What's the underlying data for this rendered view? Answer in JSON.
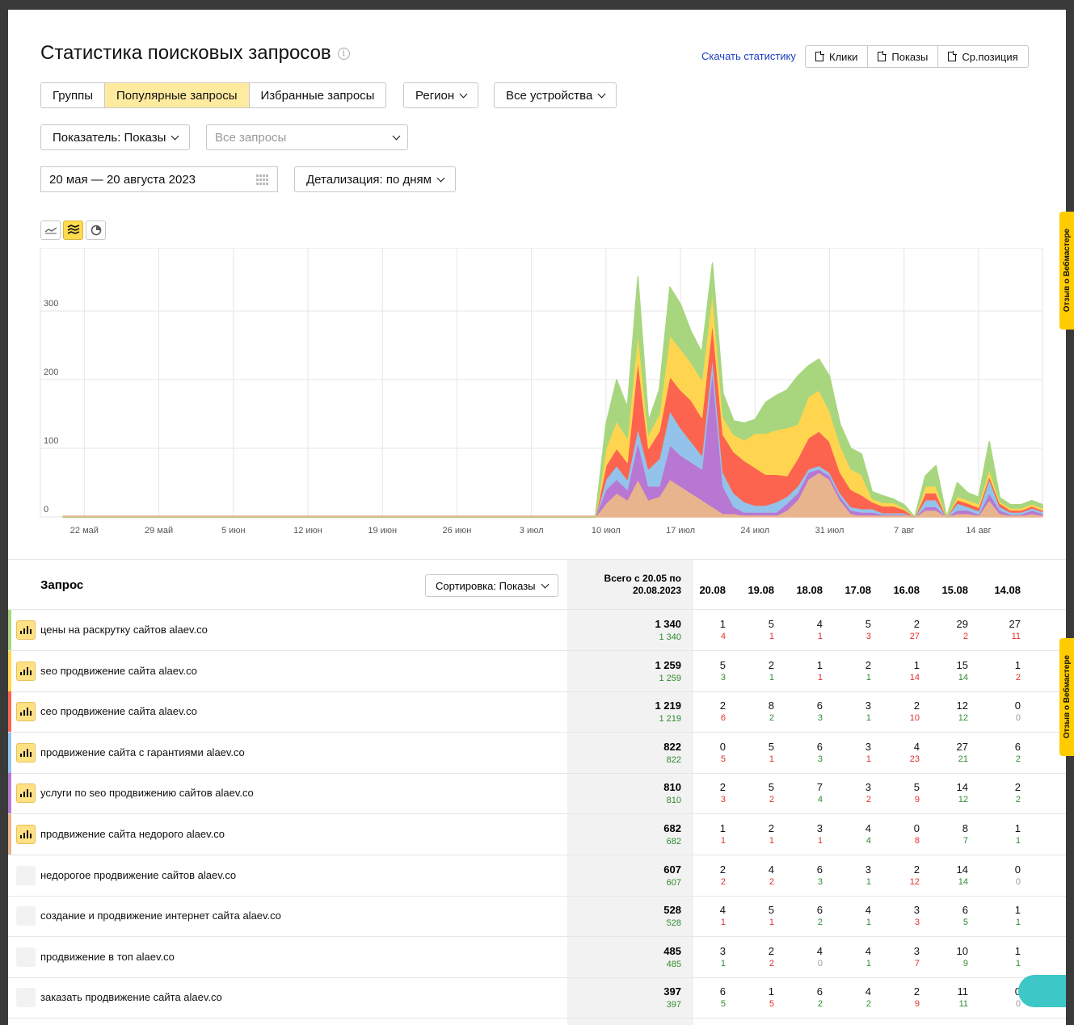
{
  "header": {
    "title": "Статистика поисковых запросов",
    "info_icon": "i",
    "download_link": "Скачать статистику",
    "downloads": [
      "Клики",
      "Показы",
      "Ср.позиция"
    ]
  },
  "filters": {
    "tabs": [
      {
        "label": "Группы",
        "active": false
      },
      {
        "label": "Популярные запросы",
        "active": true
      },
      {
        "label": "Избранные запросы",
        "active": false
      }
    ],
    "region": "Регион",
    "devices": "Все устройства",
    "indicator": "Показатель: Показы",
    "queries_placeholder": "Все запросы",
    "date_range": "20 мая — 20 августа 2023",
    "detail": "Детализация: по дням"
  },
  "colors": {
    "green": "#a8d67e",
    "yellow": "#ffd54f",
    "red": "#fc6450",
    "blue": "#93c3ea",
    "purple": "#b877d3",
    "tan": "#e8b48e",
    "active_tab": "#ffeba0",
    "accent": "#ffdb4d"
  },
  "chart_data": {
    "type": "area",
    "stacked": true,
    "x_tick_labels": [
      "22 май",
      "29 май",
      "5 июн",
      "12 июн",
      "19 июн",
      "26 июн",
      "3 июл",
      "10 июл",
      "17 июл",
      "24 июл",
      "31 июл",
      "7 авг",
      "14 авг"
    ],
    "y_ticks": [
      0,
      100,
      200,
      300
    ],
    "ylim": [
      0,
      380
    ],
    "days": 93,
    "start_index_of_data": 50,
    "series": [
      {
        "color": "#e8b48e",
        "values": [
          0,
          0,
          0,
          0,
          0,
          0,
          0,
          0,
          0,
          0,
          0,
          0,
          0,
          0,
          0,
          0,
          0,
          0,
          0,
          0,
          0,
          0,
          0,
          0,
          0,
          0,
          0,
          0,
          0,
          0,
          0,
          0,
          0,
          0,
          0,
          0,
          0,
          0,
          0,
          0,
          0,
          0,
          0,
          0,
          0,
          0,
          0,
          0,
          0,
          0,
          0,
          20,
          35,
          25,
          55,
          25,
          30,
          55,
          45,
          35,
          25,
          15,
          5,
          5,
          2,
          2,
          2,
          2,
          10,
          25,
          55,
          65,
          55,
          25,
          5,
          2,
          2,
          2,
          2,
          2,
          0,
          10,
          10,
          0,
          5,
          5,
          2,
          25,
          5,
          2,
          2,
          5,
          2
        ]
      },
      {
        "color": "#b877d3",
        "values": [
          0,
          0,
          0,
          0,
          0,
          0,
          0,
          0,
          0,
          0,
          0,
          0,
          0,
          0,
          0,
          0,
          0,
          0,
          0,
          0,
          0,
          0,
          0,
          0,
          0,
          0,
          0,
          0,
          0,
          0,
          0,
          0,
          0,
          0,
          0,
          0,
          0,
          0,
          0,
          0,
          0,
          0,
          0,
          0,
          0,
          0,
          0,
          0,
          0,
          0,
          0,
          20,
          20,
          15,
          55,
          20,
          15,
          50,
          45,
          45,
          45,
          200,
          40,
          10,
          5,
          5,
          5,
          5,
          10,
          10,
          10,
          5,
          5,
          5,
          5,
          5,
          5,
          2,
          2,
          2,
          0,
          5,
          5,
          0,
          5,
          5,
          2,
          10,
          5,
          2,
          2,
          5,
          3
        ]
      },
      {
        "color": "#93c3ea",
        "values": [
          0,
          0,
          0,
          0,
          0,
          0,
          0,
          0,
          0,
          0,
          0,
          0,
          0,
          0,
          0,
          0,
          0,
          0,
          0,
          0,
          0,
          0,
          0,
          0,
          0,
          0,
          0,
          0,
          0,
          0,
          0,
          0,
          0,
          0,
          0,
          0,
          0,
          0,
          0,
          0,
          0,
          0,
          0,
          0,
          0,
          0,
          0,
          0,
          0,
          0,
          0,
          15,
          20,
          15,
          20,
          25,
          40,
          50,
          40,
          30,
          20,
          20,
          20,
          20,
          15,
          10,
          10,
          15,
          10,
          10,
          5,
          5,
          5,
          5,
          5,
          5,
          5,
          2,
          2,
          2,
          0,
          10,
          10,
          0,
          10,
          5,
          5,
          20,
          5,
          3,
          3,
          3,
          3
        ]
      },
      {
        "color": "#fc6450",
        "values": [
          0,
          0,
          0,
          0,
          0,
          0,
          0,
          0,
          0,
          0,
          0,
          0,
          0,
          0,
          0,
          0,
          0,
          0,
          0,
          0,
          0,
          0,
          0,
          0,
          0,
          0,
          0,
          0,
          0,
          0,
          0,
          0,
          0,
          0,
          0,
          0,
          0,
          0,
          0,
          0,
          0,
          0,
          0,
          0,
          0,
          0,
          0,
          0,
          0,
          0,
          0,
          20,
          25,
          25,
          100,
          30,
          40,
          50,
          55,
          60,
          55,
          50,
          55,
          60,
          60,
          55,
          45,
          40,
          30,
          40,
          45,
          50,
          45,
          30,
          25,
          20,
          10,
          10,
          10,
          5,
          0,
          10,
          10,
          0,
          5,
          5,
          5,
          5,
          5,
          3,
          3,
          3,
          2
        ]
      },
      {
        "color": "#ffd54f",
        "values": [
          0,
          0,
          0,
          0,
          0,
          0,
          0,
          0,
          0,
          0,
          0,
          0,
          0,
          0,
          0,
          0,
          0,
          0,
          0,
          0,
          0,
          0,
          0,
          0,
          0,
          0,
          0,
          0,
          0,
          0,
          0,
          0,
          0,
          0,
          0,
          0,
          0,
          0,
          0,
          0,
          0,
          0,
          0,
          0,
          0,
          0,
          0,
          0,
          0,
          0,
          0,
          25,
          40,
          35,
          40,
          20,
          25,
          60,
          60,
          55,
          55,
          45,
          25,
          25,
          30,
          50,
          60,
          65,
          70,
          50,
          60,
          60,
          45,
          40,
          30,
          30,
          5,
          5,
          5,
          2,
          0,
          10,
          10,
          0,
          5,
          5,
          5,
          10,
          3,
          3,
          3,
          3,
          3
        ]
      },
      {
        "color": "#a8d67e",
        "values": [
          0,
          0,
          0,
          0,
          0,
          0,
          0,
          0,
          0,
          0,
          0,
          0,
          0,
          0,
          0,
          0,
          0,
          0,
          0,
          0,
          0,
          0,
          0,
          0,
          0,
          0,
          0,
          0,
          0,
          0,
          0,
          0,
          0,
          0,
          0,
          0,
          0,
          0,
          0,
          0,
          0,
          0,
          0,
          0,
          0,
          0,
          0,
          0,
          0,
          0,
          0,
          35,
          60,
          45,
          80,
          20,
          35,
          70,
          65,
          45,
          40,
          40,
          35,
          20,
          25,
          20,
          45,
          50,
          55,
          70,
          45,
          45,
          50,
          30,
          30,
          30,
          10,
          10,
          5,
          5,
          0,
          15,
          30,
          0,
          20,
          10,
          10,
          40,
          5,
          5,
          5,
          5,
          5
        ]
      }
    ]
  },
  "table": {
    "header_query": "Запрос",
    "sort": "Сортировка: Показы",
    "header_total": "Всего с 20.05 по 20.08.2023",
    "dates": [
      "20.08",
      "19.08",
      "18.08",
      "17.08",
      "16.08",
      "15.08",
      "14.08"
    ],
    "rows": [
      {
        "query": "цены на раскрутку сайтов alaev.co",
        "color": "#a8d67e",
        "on": true,
        "total": "1 340",
        "total_sub": "1 340",
        "cells": [
          [
            "1",
            "4",
            "red"
          ],
          [
            "5",
            "1",
            "red"
          ],
          [
            "4",
            "1",
            "red"
          ],
          [
            "5",
            "3",
            "red"
          ],
          [
            "2",
            "27",
            "red"
          ],
          [
            "29",
            "2",
            "red"
          ],
          [
            "27",
            "11",
            "red"
          ]
        ]
      },
      {
        "query": "seo продвижение сайта alaev.co",
        "color": "#ffd54f",
        "on": true,
        "total": "1 259",
        "total_sub": "1 259",
        "cells": [
          [
            "5",
            "3",
            "green"
          ],
          [
            "2",
            "1",
            "green"
          ],
          [
            "1",
            "1",
            "red"
          ],
          [
            "2",
            "1",
            "green"
          ],
          [
            "1",
            "14",
            "red"
          ],
          [
            "15",
            "14",
            "green"
          ],
          [
            "1",
            "2",
            "red"
          ]
        ]
      },
      {
        "query": "сео продвижение сайта alaev.co",
        "color": "#fc6450",
        "on": true,
        "total": "1 219",
        "total_sub": "1 219",
        "cells": [
          [
            "2",
            "6",
            "red"
          ],
          [
            "8",
            "2",
            "green"
          ],
          [
            "6",
            "3",
            "green"
          ],
          [
            "3",
            "1",
            "green"
          ],
          [
            "2",
            "10",
            "red"
          ],
          [
            "12",
            "12",
            "green"
          ],
          [
            "0",
            "0",
            "gray"
          ]
        ]
      },
      {
        "query": "продвижение сайта с гарантиями alaev.co",
        "color": "#93c3ea",
        "on": true,
        "total": "822",
        "total_sub": "822",
        "cells": [
          [
            "0",
            "5",
            "red"
          ],
          [
            "5",
            "1",
            "red"
          ],
          [
            "6",
            "3",
            "green"
          ],
          [
            "3",
            "1",
            "red"
          ],
          [
            "4",
            "23",
            "red"
          ],
          [
            "27",
            "21",
            "green"
          ],
          [
            "6",
            "2",
            "green"
          ]
        ]
      },
      {
        "query": "услуги по seo продвижению сайтов alaev.co",
        "color": "#b877d3",
        "on": true,
        "total": "810",
        "total_sub": "810",
        "cells": [
          [
            "2",
            "3",
            "red"
          ],
          [
            "5",
            "2",
            "red"
          ],
          [
            "7",
            "4",
            "green"
          ],
          [
            "3",
            "2",
            "red"
          ],
          [
            "5",
            "9",
            "red"
          ],
          [
            "14",
            "12",
            "green"
          ],
          [
            "2",
            "2",
            "green"
          ]
        ]
      },
      {
        "query": "продвижение сайта недорого alaev.co",
        "color": "#e8b48e",
        "on": true,
        "total": "682",
        "total_sub": "682",
        "cells": [
          [
            "1",
            "1",
            "red"
          ],
          [
            "2",
            "1",
            "red"
          ],
          [
            "3",
            "1",
            "red"
          ],
          [
            "4",
            "4",
            "green"
          ],
          [
            "0",
            "8",
            "red"
          ],
          [
            "8",
            "7",
            "green"
          ],
          [
            "1",
            "1",
            "green"
          ]
        ]
      },
      {
        "query": "недорогое продвижение сайтов alaev.co",
        "color": "",
        "on": false,
        "total": "607",
        "total_sub": "607",
        "cells": [
          [
            "2",
            "2",
            "red"
          ],
          [
            "4",
            "2",
            "red"
          ],
          [
            "6",
            "3",
            "green"
          ],
          [
            "3",
            "1",
            "green"
          ],
          [
            "2",
            "12",
            "red"
          ],
          [
            "14",
            "14",
            "green"
          ],
          [
            "0",
            "0",
            "gray"
          ]
        ]
      },
      {
        "query": "создание и продвижение интернет сайта alaev.co",
        "color": "",
        "on": false,
        "total": "528",
        "total_sub": "528",
        "cells": [
          [
            "4",
            "1",
            "red"
          ],
          [
            "5",
            "1",
            "red"
          ],
          [
            "6",
            "2",
            "green"
          ],
          [
            "4",
            "1",
            "green"
          ],
          [
            "3",
            "3",
            "red"
          ],
          [
            "6",
            "5",
            "green"
          ],
          [
            "1",
            "1",
            "green"
          ]
        ]
      },
      {
        "query": "продвижение в топ alaev.co",
        "color": "",
        "on": false,
        "total": "485",
        "total_sub": "485",
        "cells": [
          [
            "3",
            "1",
            "green"
          ],
          [
            "2",
            "2",
            "red"
          ],
          [
            "4",
            "0",
            "gray"
          ],
          [
            "4",
            "1",
            "green"
          ],
          [
            "3",
            "7",
            "red"
          ],
          [
            "10",
            "9",
            "green"
          ],
          [
            "1",
            "1",
            "green"
          ]
        ]
      },
      {
        "query": "заказать продвижение сайта alaev.co",
        "color": "",
        "on": false,
        "total": "397",
        "total_sub": "397",
        "cells": [
          [
            "6",
            "5",
            "green"
          ],
          [
            "1",
            "5",
            "red"
          ],
          [
            "6",
            "2",
            "green"
          ],
          [
            "4",
            "2",
            "green"
          ],
          [
            "2",
            "9",
            "red"
          ],
          [
            "11",
            "11",
            "green"
          ],
          [
            "0",
            "0",
            "gray"
          ]
        ]
      }
    ]
  },
  "feedback_tab": "Отзыв о Вебмастере"
}
